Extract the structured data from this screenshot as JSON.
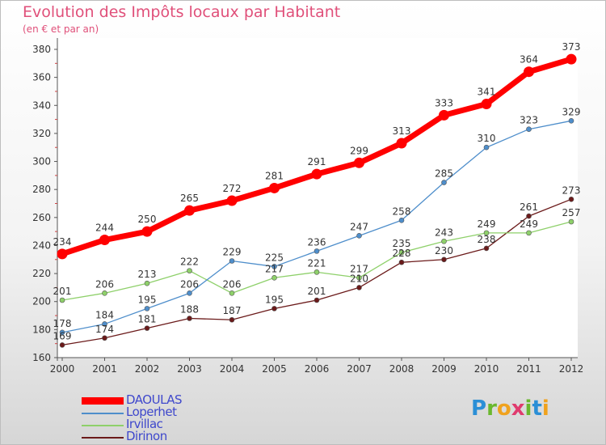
{
  "title": "Evolution des Impôts locaux par Habitant",
  "subtitle": "(en € et par an)",
  "brand": {
    "letters": [
      {
        "ch": "P",
        "color": "#2b8fd6"
      },
      {
        "ch": "r",
        "color": "#6ab82e"
      },
      {
        "ch": "o",
        "color": "#f0a21e"
      },
      {
        "ch": "x",
        "color": "#e03b6e"
      },
      {
        "ch": "i",
        "color": "#6ab82e"
      },
      {
        "ch": "t",
        "color": "#2b8fd6"
      },
      {
        "ch": "i",
        "color": "#f0a21e"
      }
    ]
  },
  "chart_data": {
    "type": "line",
    "x": [
      "2000",
      "2001",
      "2002",
      "2003",
      "2004",
      "2005",
      "2006",
      "2007",
      "2008",
      "2009",
      "2010",
      "2011",
      "2012"
    ],
    "yticks": [
      160,
      180,
      200,
      220,
      240,
      260,
      280,
      300,
      320,
      340,
      360,
      380
    ],
    "ylim": [
      160,
      380
    ],
    "grid": false,
    "legend_position": "bottom-left",
    "series": [
      {
        "name": "Dirinon",
        "color": "#6b1a1a",
        "values": [
          169,
          174,
          181,
          188,
          187,
          195,
          201,
          210,
          228,
          230,
          238,
          261,
          273
        ]
      },
      {
        "name": "Irvillac",
        "color": "#8ed06a",
        "values": [
          201,
          206,
          213,
          222,
          206,
          217,
          221,
          217,
          235,
          243,
          249,
          249,
          257
        ]
      },
      {
        "name": "Loperhet",
        "color": "#4e8ecb",
        "values": [
          178,
          184,
          195,
          206,
          229,
          225,
          236,
          247,
          258,
          285,
          310,
          323,
          329
        ]
      },
      {
        "name": "DAOULAS",
        "color": "#ff0000",
        "values": [
          234,
          244,
          250,
          265,
          272,
          281,
          291,
          299,
          313,
          333,
          341,
          364,
          373
        ]
      }
    ],
    "legend_order": [
      "DAOULAS",
      "Loperhet",
      "Irvillac",
      "Dirinon"
    ]
  }
}
